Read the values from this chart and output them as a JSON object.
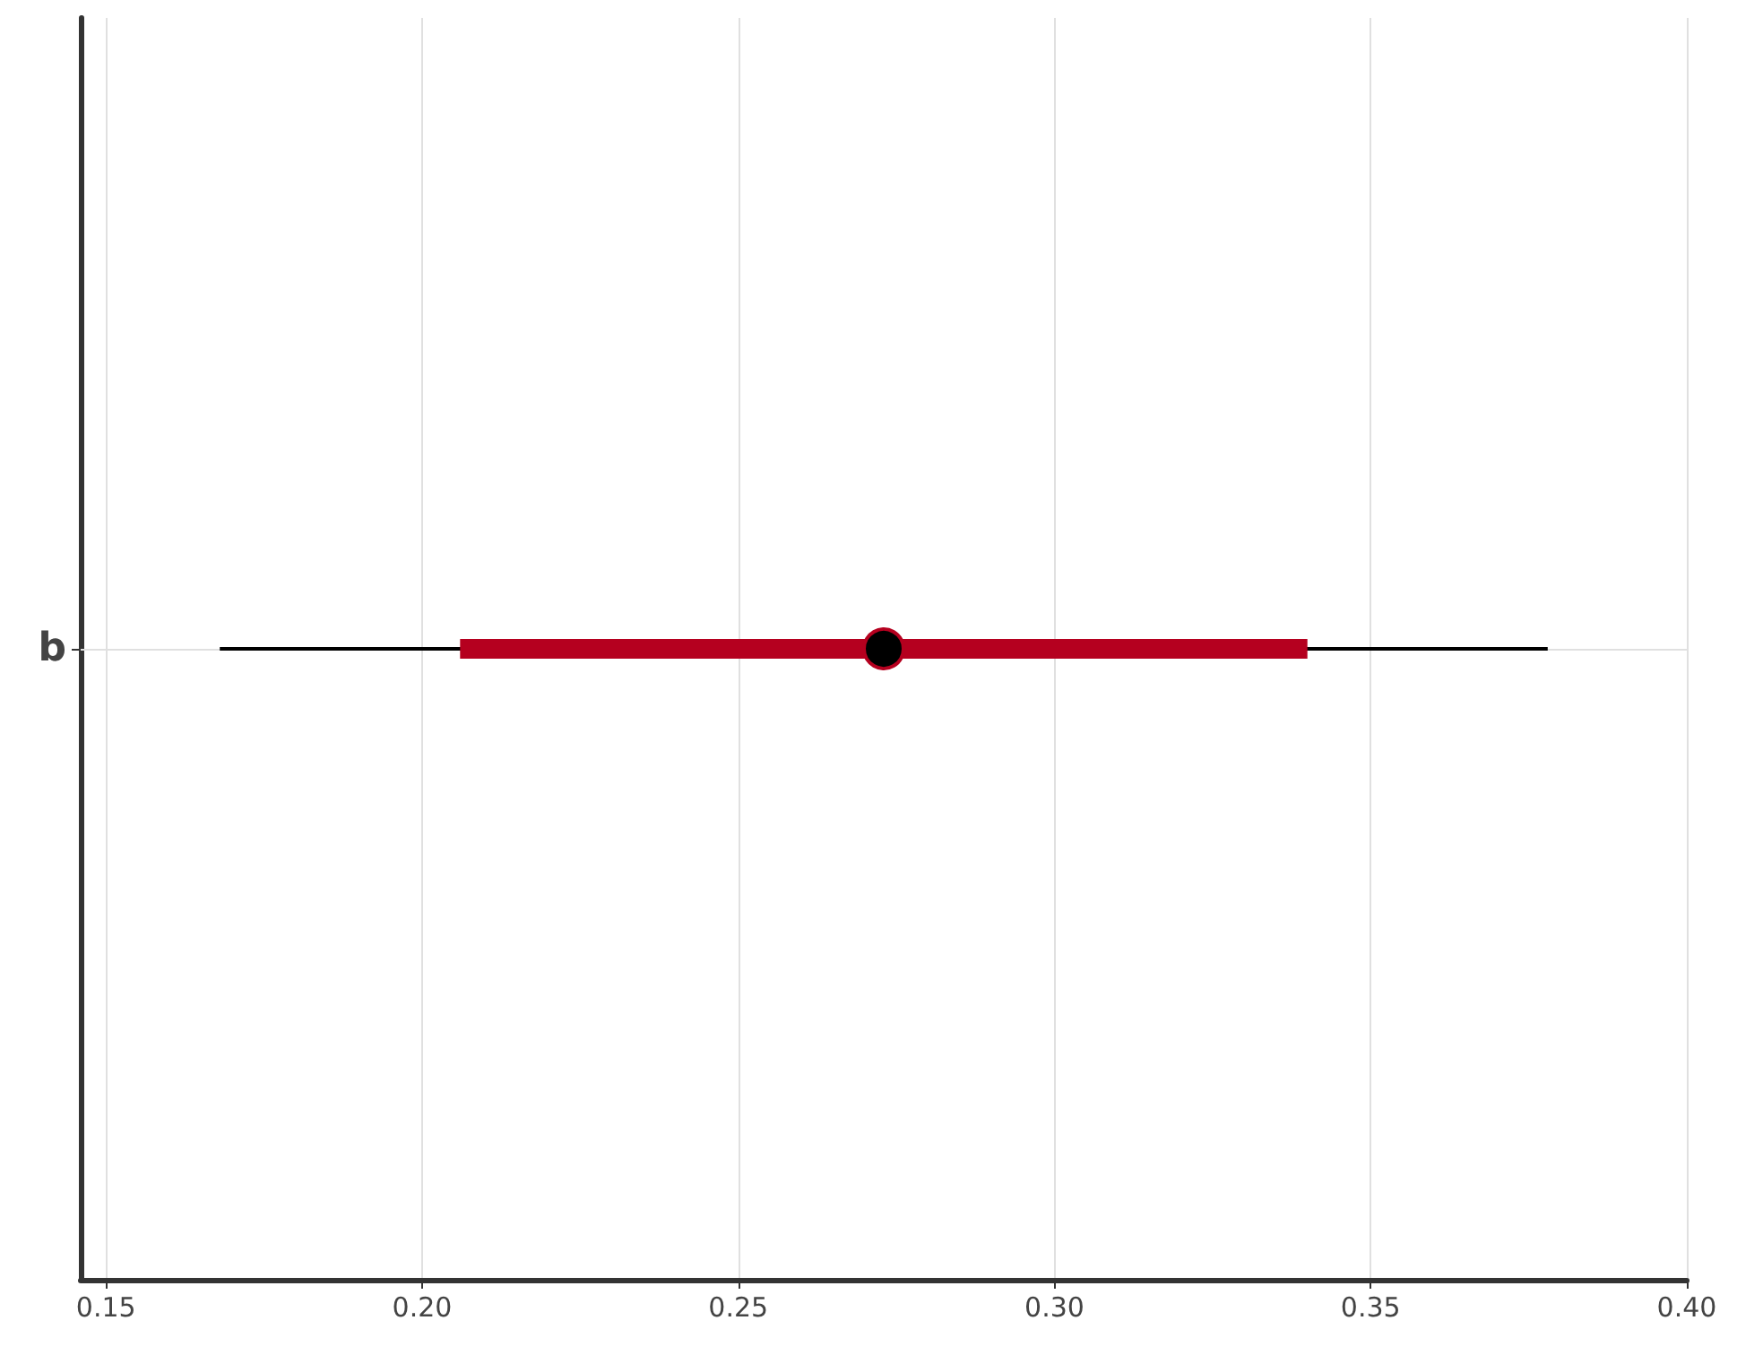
{
  "chart_data": {
    "type": "box",
    "orientation": "horizontal",
    "categories": [
      "b"
    ],
    "color": "#b5001f",
    "boxes": [
      {
        "low": 0.168,
        "q1": 0.206,
        "median": 0.273,
        "q3": 0.34,
        "high": 0.378
      }
    ],
    "xlim": [
      0.146,
      0.4
    ],
    "xticks": [
      0.15,
      {
        "value": 0.2,
        "label": "0.20"
      },
      0.25,
      {
        "value": 0.3,
        "label": "0.30"
      },
      0.35,
      {
        "value": 0.4,
        "label": "0.40"
      }
    ],
    "grid": true
  }
}
